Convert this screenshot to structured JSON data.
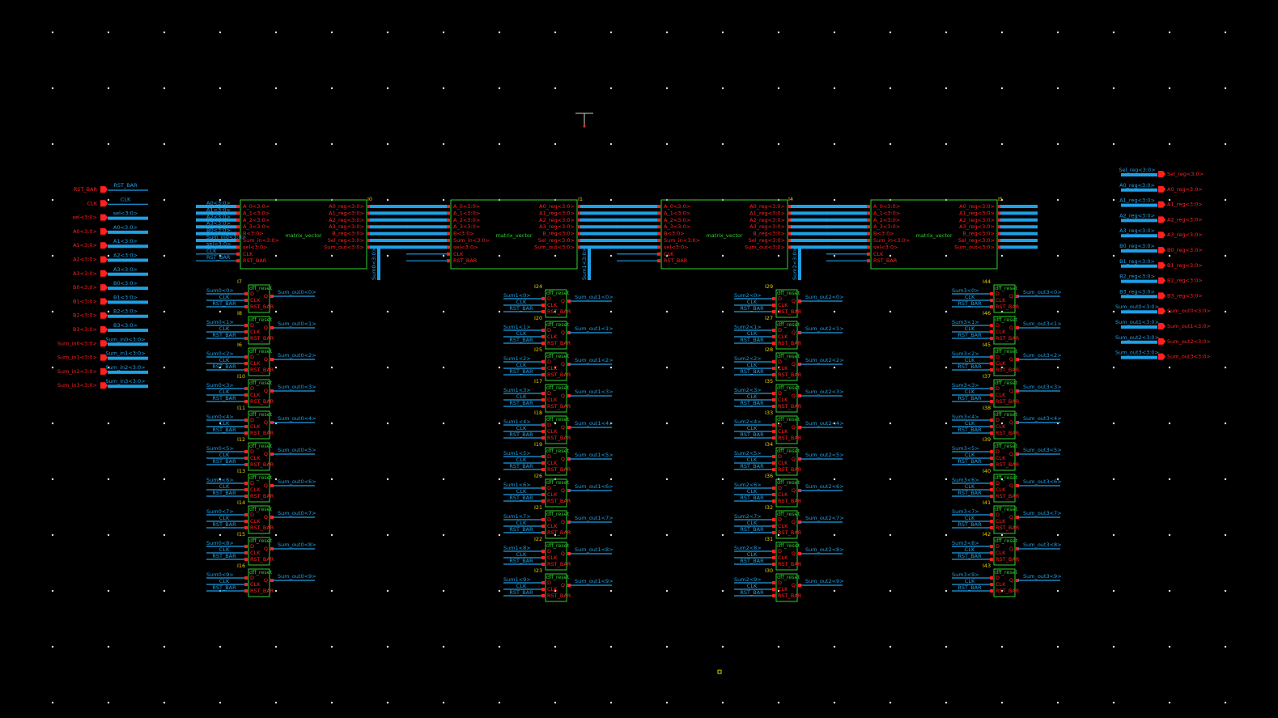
{
  "left_pins": [
    "RST_BAR",
    "CLK",
    "sel<3:0>",
    "A0<3:0>",
    "A1<3:0>",
    "A2<3:0>",
    "A3<3:0>",
    "B0<3:0>",
    "B1<3:0>",
    "B2<3:0>",
    "B3<3:0>",
    "Sum_in0<3:0>",
    "Sum_in1<3:0>",
    "Sum_in2<3:0>",
    "Sum_in3<3:0>"
  ],
  "right_pins": [
    "Sel_reg<3:0>",
    "A0_reg<3:0>",
    "A1_reg<3:0>",
    "A2_reg<3:0>",
    "A3_reg<3:0>",
    "B0_reg<3:0>",
    "B1_reg<3:0>",
    "B2_reg<3:0>",
    "B3_reg<3:0>",
    "Sum_out0<3:0>",
    "Sum_out1<3:0>",
    "Sum_out2<3:0>",
    "Sum_out3<3:0>"
  ],
  "matrix_cell": {
    "name": "matrix_vector",
    "inputs": [
      "A_0<3:0>",
      "A_1<3:0>",
      "A_2<3:0>",
      "A_3<3:0>",
      "B<3:0>",
      "Sum_in<3:0>",
      "sel<3:0>",
      "CLK",
      "RST_BAR"
    ],
    "outputs": [
      "A0_reg<3:0>",
      "A1_reg<3:0>",
      "A2_reg<3:0>",
      "A3_reg<3:0>",
      "B_reg<3:0>",
      "Sel_reg<3:0>",
      "Sum_out<3:0>"
    ]
  },
  "matrix_instances": [
    "I0",
    "I1",
    "I4",
    "I5"
  ],
  "first_inputs": [
    "A0<3:0>",
    "A1<3:0>",
    "A2<3:0>",
    "A3<3:0>",
    "B0<3:0>",
    "Sum_in0<3:0>",
    "sel<3:0>",
    "CLK",
    "RST_BAR"
  ],
  "sum_links": [
    "Sum0<3:0>",
    "Sum1<3:0>",
    "Sum2<3:0>"
  ],
  "dff_cell": {
    "name": "dff_reset",
    "pins": [
      "D",
      "CLK",
      "RST_BAR",
      "Q"
    ]
  },
  "nets": {
    "clk": "CLK",
    "rst": "RST_BAR"
  },
  "dff_columns": [
    {
      "instances": [
        "I7",
        "I8",
        "I6",
        "I10",
        "I11",
        "I12",
        "I13",
        "I14",
        "I15",
        "I16"
      ],
      "inputs": [
        "Sum0<0>",
        "Sum0<1>",
        "Sum0<2>",
        "Sum0<3>",
        "Sum0<4>",
        "Sum0<5>",
        "Sum0<6>",
        "Sum0<7>",
        "Sum0<8>",
        "Sum0<9>"
      ],
      "outputs": [
        "Sum_out0<0>",
        "Sum_out0<1>",
        "Sum_out0<2>",
        "Sum_out0<3>",
        "Sum_out0<4>",
        "Sum_out0<5>",
        "Sum_out0<6>",
        "Sum_out0<7>",
        "Sum_out0<8>",
        "Sum_out0<9>"
      ]
    },
    {
      "instances": [
        "I24",
        "I20",
        "I25",
        "I17",
        "I18",
        "I19",
        "I26",
        "I21",
        "I22",
        "I23"
      ],
      "inputs": [
        "Sum1<0>",
        "Sum1<1>",
        "Sum1<2>",
        "Sum1<3>",
        "Sum1<4>",
        "Sum1<5>",
        "Sum1<6>",
        "Sum1<7>",
        "Sum1<8>",
        "Sum1<9>"
      ],
      "outputs": [
        "Sum_out1<0>",
        "Sum_out1<1>",
        "Sum_out1<2>",
        "Sum_out1<3>",
        "Sum_out1<4>",
        "Sum_out1<5>",
        "Sum_out1<6>",
        "Sum_out1<7>",
        "Sum_out1<8>",
        "Sum_out1<9>"
      ]
    },
    {
      "instances": [
        "I29",
        "I27",
        "I28",
        "I35",
        "I33",
        "I34",
        "I36",
        "I32",
        "I31",
        "I30"
      ],
      "inputs": [
        "Sum2<0>",
        "Sum2<1>",
        "Sum2<2>",
        "Sum2<3>",
        "Sum2<4>",
        "Sum2<5>",
        "Sum2<6>",
        "Sum2<7>",
        "Sum2<8>",
        "Sum2<9>"
      ],
      "outputs": [
        "Sum_out2<0>",
        "Sum_out2<1>",
        "Sum_out2<2>",
        "Sum_out2<3>",
        "Sum_out2<4>",
        "Sum_out2<5>",
        "Sum_out2<6>",
        "Sum_out2<7>",
        "Sum_out2<8>",
        "Sum_out2<9>"
      ]
    },
    {
      "instances": [
        "I44",
        "I46",
        "I45",
        "I37",
        "I38",
        "I39",
        "I40",
        "I41",
        "I42",
        "I43"
      ],
      "inputs": [
        "Sum3<0>",
        "Sum3<1>",
        "Sum3<2>",
        "Sum3<3>",
        "Sum3<4>",
        "Sum3<5>",
        "Sum3<6>",
        "Sum3<7>",
        "Sum3<8>",
        "Sum3<9>"
      ],
      "outputs": [
        "Sum_out3<0>",
        "Sum_out3<1>",
        "Sum_out3<2>",
        "Sum_out3<3>",
        "Sum_out3<4>",
        "Sum_out3<5>",
        "Sum_out3<6>",
        "Sum_out3<7>",
        "Sum_out3<8>",
        "Sum_out3<9>"
      ]
    }
  ]
}
